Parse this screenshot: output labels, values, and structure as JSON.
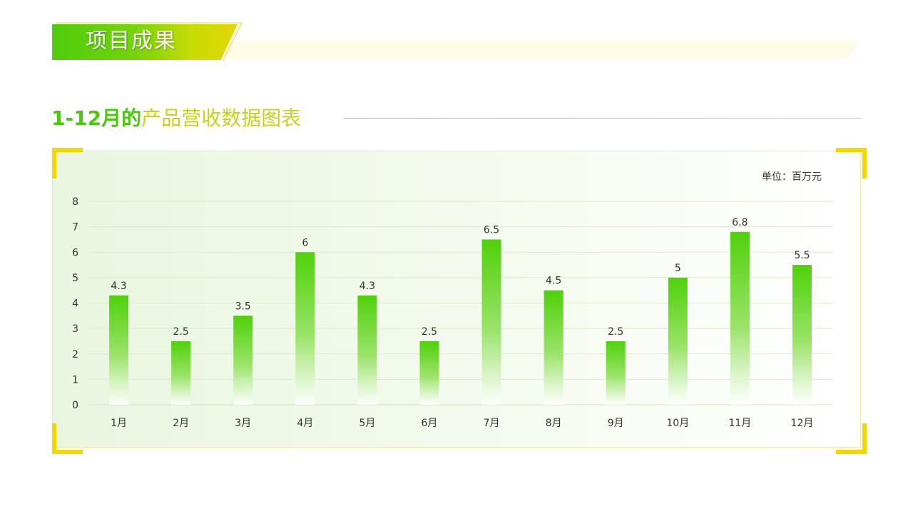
{
  "header": {
    "title": "项目成果"
  },
  "subtitle": {
    "part1": "1-12月的",
    "part2": "产品营收数据图表"
  },
  "colors": {
    "accent_green": "#4dc60f",
    "accent_yellow": "#f7d600",
    "bar_top": "#4fd10a",
    "grid": "#d9ecc6"
  },
  "chart_data": {
    "type": "bar",
    "unit_label": "单位：百万元",
    "categories": [
      "1月",
      "2月",
      "3月",
      "4月",
      "5月",
      "6月",
      "7月",
      "8月",
      "9月",
      "10月",
      "11月",
      "12月"
    ],
    "values": [
      4.3,
      2.5,
      3.5,
      6,
      4.3,
      2.5,
      6.5,
      4.5,
      2.5,
      5,
      6.8,
      5.5
    ],
    "ylim": [
      0,
      8
    ],
    "yticks": [
      0,
      1,
      2,
      3,
      4,
      5,
      6,
      7,
      8
    ],
    "grid": true,
    "data_labels": true
  }
}
